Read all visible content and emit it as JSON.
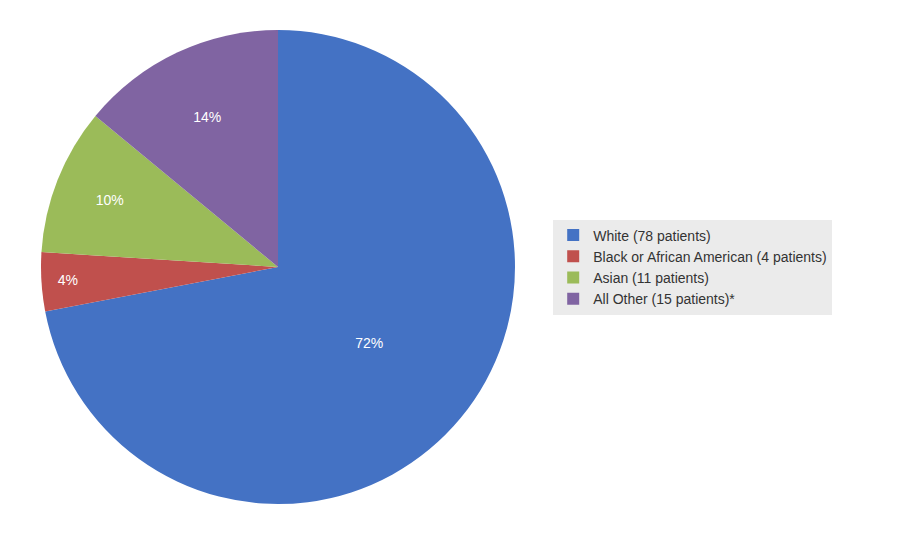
{
  "chart_data": {
    "type": "pie",
    "categories": [
      "White (78 patients)",
      "Black or African American (4 patients)",
      "Asian (11 patients)",
      "All Other (15 patients)*"
    ],
    "values": [
      72,
      4,
      10,
      14
    ],
    "value_labels": [
      "72%",
      "4%",
      "10%",
      "14%"
    ],
    "colors": [
      "#4472C4",
      "#C0504D",
      "#9BBB59",
      "#8064A2"
    ],
    "data_labels": true,
    "legend": "right"
  }
}
